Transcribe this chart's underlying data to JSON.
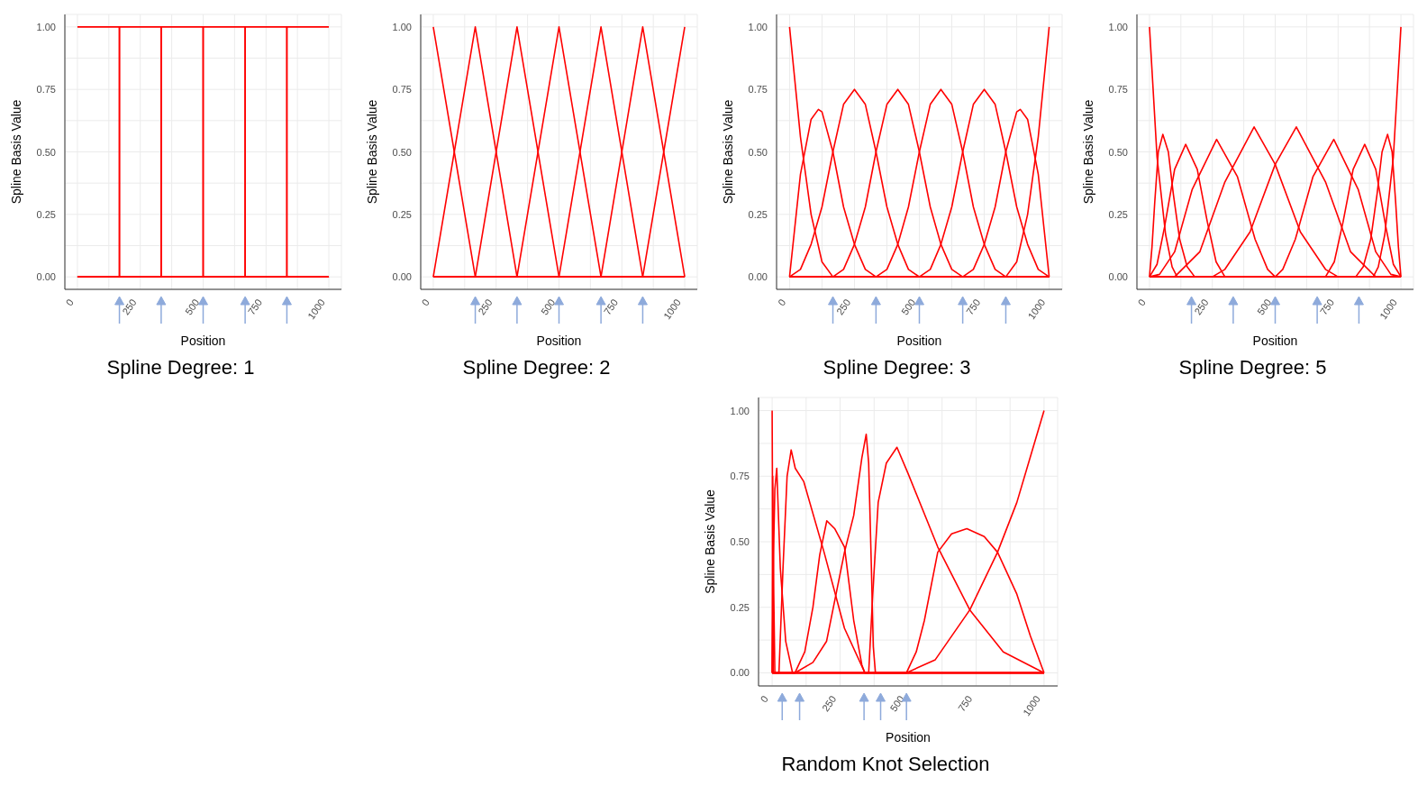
{
  "chart_data": [
    {
      "type": "line",
      "title": "Spline Degree: 1",
      "xlabel": "Position",
      "ylabel": "Spline Basis Value",
      "xlim": [
        -50,
        1050
      ],
      "ylim": [
        -0.05,
        1.05
      ],
      "xticks": [
        0,
        {
          "value": 125,
          "label": null
        },
        250,
        {
          "value": 375,
          "label": null
        },
        500,
        {
          "value": 625,
          "label": null
        },
        750,
        {
          "value": 875,
          "label": null
        },
        1000
      ],
      "yticks": [
        {
          "value": 0,
          "label": "0.00"
        },
        {
          "value": 0.125,
          "label": null
        },
        {
          "value": 0.25,
          "label": "0.25"
        },
        {
          "value": 0.375,
          "label": null
        },
        {
          "value": 0.5,
          "label": "0.50"
        },
        {
          "value": 0.625,
          "label": null
        },
        {
          "value": 0.75,
          "label": "0.75"
        },
        {
          "value": 0.875,
          "label": null
        },
        {
          "value": 1,
          "label": "1.00"
        }
      ],
      "grid": true,
      "marker": "none",
      "series": [
        {
          "color": "#ff0000",
          "x": [
            0,
            167,
            167,
            1000
          ],
          "values": [
            1,
            1,
            0,
            0
          ]
        },
        {
          "color": "#ff0000",
          "x": [
            0,
            167,
            167,
            333,
            333,
            1000
          ],
          "values": [
            0,
            0,
            1,
            1,
            0,
            0
          ]
        },
        {
          "color": "#ff0000",
          "x": [
            0,
            333,
            333,
            500,
            500,
            1000
          ],
          "values": [
            0,
            0,
            1,
            1,
            0,
            0
          ]
        },
        {
          "color": "#ff0000",
          "x": [
            0,
            500,
            500,
            667,
            667,
            1000
          ],
          "values": [
            0,
            0,
            1,
            1,
            0,
            0
          ]
        },
        {
          "color": "#ff0000",
          "x": [
            0,
            667,
            667,
            833,
            833,
            1000
          ],
          "values": [
            0,
            0,
            1,
            1,
            0,
            0
          ]
        },
        {
          "color": "#ff0000",
          "x": [
            0,
            833,
            833,
            1000
          ],
          "values": [
            0,
            0,
            1,
            1
          ]
        }
      ]
    },
    {
      "type": "line",
      "title": "Spline Degree: 2",
      "xlabel": "Position",
      "ylabel": "Spline Basis Value",
      "xlim": [
        -50,
        1050
      ],
      "ylim": [
        -0.05,
        1.05
      ],
      "xticks": [
        0,
        {
          "value": 125,
          "label": null
        },
        250,
        {
          "value": 375,
          "label": null
        },
        500,
        {
          "value": 625,
          "label": null
        },
        750,
        {
          "value": 875,
          "label": null
        },
        1000
      ],
      "yticks": [
        {
          "value": 0,
          "label": "0.00"
        },
        {
          "value": 0.125,
          "label": null
        },
        {
          "value": 0.25,
          "label": "0.25"
        },
        {
          "value": 0.375,
          "label": null
        },
        {
          "value": 0.5,
          "label": "0.50"
        },
        {
          "value": 0.625,
          "label": null
        },
        {
          "value": 0.75,
          "label": "0.75"
        },
        {
          "value": 0.875,
          "label": null
        },
        {
          "value": 1,
          "label": "1.00"
        }
      ],
      "grid": true,
      "marker": "none",
      "series": [
        {
          "color": "#ff0000",
          "x": [
            0,
            167,
            1000
          ],
          "values": [
            1,
            0,
            0
          ]
        },
        {
          "color": "#ff0000",
          "x": [
            0,
            167,
            333,
            1000
          ],
          "values": [
            0,
            1,
            0,
            0
          ]
        },
        {
          "color": "#ff0000",
          "x": [
            0,
            167,
            333,
            500,
            1000
          ],
          "values": [
            0,
            0,
            1,
            0,
            0
          ]
        },
        {
          "color": "#ff0000",
          "x": [
            0,
            333,
            500,
            667,
            1000
          ],
          "values": [
            0,
            0,
            1,
            0,
            0
          ]
        },
        {
          "color": "#ff0000",
          "x": [
            0,
            500,
            667,
            833,
            1000
          ],
          "values": [
            0,
            0,
            1,
            0,
            0
          ]
        },
        {
          "color": "#ff0000",
          "x": [
            0,
            667,
            833,
            1000
          ],
          "values": [
            0,
            0,
            1,
            0
          ]
        },
        {
          "color": "#ff0000",
          "x": [
            0,
            833,
            1000
          ],
          "values": [
            0,
            0,
            1
          ]
        }
      ]
    },
    {
      "type": "line",
      "title": "Spline Degree: 3",
      "xlabel": "Position",
      "ylabel": "Spline Basis Value",
      "xlim": [
        -50,
        1050
      ],
      "ylim": [
        -0.05,
        1.05
      ],
      "xticks": [
        0,
        {
          "value": 125,
          "label": null
        },
        250,
        {
          "value": 375,
          "label": null
        },
        500,
        {
          "value": 625,
          "label": null
        },
        750,
        {
          "value": 875,
          "label": null
        },
        1000
      ],
      "yticks": [
        {
          "value": 0,
          "label": "0.00"
        },
        {
          "value": 0.125,
          "label": null
        },
        {
          "value": 0.25,
          "label": "0.25"
        },
        {
          "value": 0.375,
          "label": null
        },
        {
          "value": 0.5,
          "label": "0.50"
        },
        {
          "value": 0.625,
          "label": null
        },
        {
          "value": 0.75,
          "label": "0.75"
        },
        {
          "value": 0.875,
          "label": null
        },
        {
          "value": 1,
          "label": "1.00"
        }
      ],
      "grid": true,
      "marker": "none",
      "series": [
        {
          "color": "#ff0000",
          "x": [
            0,
            42,
            83,
            125,
            167,
            1000
          ],
          "values": [
            1,
            0.56,
            0.25,
            0.06,
            0,
            0
          ]
        },
        {
          "color": "#ff0000",
          "x": [
            0,
            42,
            83,
            111,
            125,
            167,
            208,
            250,
            292,
            333,
            1000
          ],
          "values": [
            0,
            0.41,
            0.63,
            0.67,
            0.66,
            0.5,
            0.28,
            0.13,
            0.03,
            0,
            0
          ]
        },
        {
          "color": "#ff0000",
          "x": [
            0,
            42,
            83,
            125,
            167,
            208,
            250,
            292,
            333,
            375,
            417,
            458,
            500,
            1000
          ],
          "values": [
            0,
            0.03,
            0.13,
            0.28,
            0.5,
            0.69,
            0.75,
            0.69,
            0.5,
            0.28,
            0.13,
            0.03,
            0,
            0
          ]
        },
        {
          "color": "#ff0000",
          "x": [
            0,
            167,
            208,
            250,
            292,
            333,
            375,
            417,
            458,
            500,
            542,
            583,
            625,
            667,
            1000
          ],
          "values": [
            0,
            0,
            0.03,
            0.13,
            0.28,
            0.5,
            0.69,
            0.75,
            0.69,
            0.5,
            0.28,
            0.13,
            0.03,
            0,
            0
          ]
        },
        {
          "color": "#ff0000",
          "x": [
            0,
            333,
            375,
            417,
            458,
            500,
            542,
            583,
            625,
            667,
            708,
            750,
            792,
            833,
            1000
          ],
          "values": [
            0,
            0,
            0.03,
            0.13,
            0.28,
            0.5,
            0.69,
            0.75,
            0.69,
            0.5,
            0.28,
            0.13,
            0.03,
            0,
            0
          ]
        },
        {
          "color": "#ff0000",
          "x": [
            0,
            500,
            542,
            583,
            625,
            667,
            708,
            750,
            792,
            833,
            875,
            917,
            958,
            1000
          ],
          "values": [
            0,
            0,
            0.03,
            0.13,
            0.28,
            0.5,
            0.69,
            0.75,
            0.69,
            0.5,
            0.28,
            0.13,
            0.03,
            0
          ]
        },
        {
          "color": "#ff0000",
          "x": [
            0,
            667,
            708,
            750,
            792,
            833,
            875,
            889,
            917,
            958,
            1000
          ],
          "values": [
            0,
            0,
            0.03,
            0.13,
            0.28,
            0.5,
            0.66,
            0.67,
            0.63,
            0.41,
            0
          ]
        },
        {
          "color": "#ff0000",
          "x": [
            0,
            833,
            875,
            917,
            958,
            1000
          ],
          "values": [
            0,
            0,
            0.06,
            0.25,
            0.56,
            1
          ]
        }
      ]
    },
    {
      "type": "line",
      "title": "Spline Degree: 5",
      "xlabel": "Position",
      "ylabel": "Spline Basis Value",
      "xlim": [
        -50,
        1050
      ],
      "ylim": [
        -0.05,
        1.05
      ],
      "xticks": [
        0,
        {
          "value": 125,
          "label": null
        },
        250,
        {
          "value": 375,
          "label": null
        },
        500,
        {
          "value": 625,
          "label": null
        },
        750,
        {
          "value": 875,
          "label": null
        },
        1000
      ],
      "yticks": [
        {
          "value": 0,
          "label": "0.00"
        },
        {
          "value": 0.125,
          "label": null
        },
        {
          "value": 0.25,
          "label": "0.25"
        },
        {
          "value": 0.375,
          "label": null
        },
        {
          "value": 0.5,
          "label": "0.50"
        },
        {
          "value": 0.625,
          "label": null
        },
        {
          "value": 0.75,
          "label": "0.75"
        },
        {
          "value": 0.875,
          "label": null
        },
        {
          "value": 1,
          "label": "1.00"
        }
      ],
      "grid": true,
      "marker": "none",
      "series": [
        {
          "color": "#ff0000",
          "x": [
            0,
            30,
            64,
            90,
            110,
            1000
          ],
          "values": [
            1,
            0.48,
            0.17,
            0.04,
            0,
            0
          ]
        },
        {
          "color": "#ff0000",
          "x": [
            0,
            10,
            21,
            35,
            53,
            75,
            95,
            120,
            150,
            180,
            1000
          ],
          "values": [
            0,
            0.12,
            0.3,
            0.5,
            0.57,
            0.5,
            0.33,
            0.15,
            0.04,
            0,
            0
          ]
        },
        {
          "color": "#ff0000",
          "x": [
            0,
            30,
            60,
            100,
            144,
            190,
            230,
            265,
            300,
            1000
          ],
          "values": [
            0,
            0.05,
            0.2,
            0.43,
            0.53,
            0.43,
            0.22,
            0.06,
            0,
            0
          ]
        },
        {
          "color": "#ff0000",
          "x": [
            0,
            40,
            100,
            170,
            267,
            350,
            420,
            470,
            500,
            1000
          ],
          "values": [
            0,
            0.01,
            0.1,
            0.35,
            0.55,
            0.4,
            0.15,
            0.03,
            0,
            0
          ]
        },
        {
          "color": "#ff0000",
          "x": [
            0,
            100,
            200,
            300,
            416,
            500,
            600,
            700,
            750,
            1000
          ],
          "values": [
            0,
            0,
            0.1,
            0.38,
            0.6,
            0.45,
            0.18,
            0.03,
            0,
            0
          ]
        },
        {
          "color": "#ff0000",
          "x": [
            0,
            250,
            300,
            400,
            500,
            584,
            700,
            800,
            900,
            1000
          ],
          "values": [
            0,
            0,
            0.03,
            0.18,
            0.45,
            0.6,
            0.38,
            0.1,
            0,
            0
          ]
        },
        {
          "color": "#ff0000",
          "x": [
            0,
            500,
            530,
            580,
            650,
            733,
            830,
            900,
            960,
            1000
          ],
          "values": [
            0,
            0,
            0.03,
            0.15,
            0.4,
            0.55,
            0.35,
            0.1,
            0.01,
            0
          ]
        },
        {
          "color": "#ff0000",
          "x": [
            0,
            700,
            735,
            770,
            810,
            856,
            900,
            940,
            970,
            1000
          ],
          "values": [
            0,
            0,
            0.06,
            0.22,
            0.43,
            0.53,
            0.43,
            0.2,
            0.05,
            0
          ]
        },
        {
          "color": "#ff0000",
          "x": [
            0,
            820,
            850,
            880,
            905,
            925,
            947,
            965,
            979,
            990,
            1000
          ],
          "values": [
            0,
            0,
            0.04,
            0.15,
            0.33,
            0.5,
            0.57,
            0.5,
            0.3,
            0.12,
            0
          ]
        },
        {
          "color": "#ff0000",
          "x": [
            0,
            890,
            910,
            936,
            970,
            1000
          ],
          "values": [
            0,
            0,
            0.04,
            0.17,
            0.48,
            1
          ]
        }
      ]
    },
    {
      "type": "line",
      "title": "Random Knot Selection",
      "xlabel": "Position",
      "ylabel": "Spline Basis Value",
      "xlim": [
        -50,
        1050
      ],
      "ylim": [
        -0.05,
        1.05
      ],
      "xticks": [
        0,
        {
          "value": 125,
          "label": null
        },
        250,
        {
          "value": 375,
          "label": null
        },
        500,
        {
          "value": 625,
          "label": null
        },
        750,
        {
          "value": 875,
          "label": null
        },
        1000
      ],
      "yticks": [
        {
          "value": 0,
          "label": "0.00"
        },
        {
          "value": 0.125,
          "label": null
        },
        {
          "value": 0.25,
          "label": "0.25"
        },
        {
          "value": 0.375,
          "label": null
        },
        {
          "value": 0.5,
          "label": "0.50"
        },
        {
          "value": 0.625,
          "label": null
        },
        {
          "value": 0.75,
          "label": "0.75"
        },
        {
          "value": 0.875,
          "label": null
        },
        {
          "value": 1,
          "label": "1.00"
        }
      ],
      "grid": true,
      "marker": "none",
      "series": [
        {
          "color": "#ff0000",
          "x": [
            0,
            4,
            1000
          ],
          "values": [
            1,
            0,
            0
          ]
        },
        {
          "color": "#ff0000",
          "x": [
            0,
            2,
            6,
            10,
            1000
          ],
          "values": [
            0,
            0.75,
            0.3,
            0,
            0
          ]
        },
        {
          "color": "#ff0000",
          "x": [
            0,
            5,
            10,
            17,
            30,
            50,
            75,
            1000
          ],
          "values": [
            0,
            0.45,
            0.7,
            0.78,
            0.4,
            0.12,
            0,
            0
          ]
        },
        {
          "color": "#ff0000",
          "x": [
            0,
            25,
            40,
            55,
            70,
            85,
            116,
            191,
            266,
            341,
            1000
          ],
          "values": [
            0,
            0,
            0.4,
            0.75,
            0.85,
            0.78,
            0.73,
            0.46,
            0.17,
            0,
            0
          ]
        },
        {
          "color": "#ff0000",
          "x": [
            0,
            84,
            120,
            150,
            175,
            201,
            230,
            266,
            300,
            330,
            341,
            1000
          ],
          "values": [
            0,
            0,
            0.08,
            0.25,
            0.45,
            0.58,
            0.55,
            0.48,
            0.2,
            0.03,
            0,
            0
          ]
        },
        {
          "color": "#ff0000",
          "x": [
            0,
            84,
            150,
            200,
            266,
            300,
            330,
            346,
            355,
            365,
            372,
            380,
            1000
          ],
          "values": [
            0,
            0,
            0.04,
            0.12,
            0.46,
            0.6,
            0.82,
            0.91,
            0.8,
            0.4,
            0.1,
            0,
            0
          ]
        },
        {
          "color": "#ff0000",
          "x": [
            0,
            355,
            370,
            390,
            420,
            459,
            500,
            609,
            727,
            850,
            1000
          ],
          "values": [
            0,
            0,
            0.3,
            0.65,
            0.8,
            0.86,
            0.76,
            0.48,
            0.24,
            0.08,
            0
          ]
        },
        {
          "color": "#ff0000",
          "x": [
            0,
            494,
            530,
            560,
            609,
            660,
            716,
            780,
            829,
            900,
            950,
            1000
          ],
          "values": [
            0,
            0,
            0.08,
            0.2,
            0.46,
            0.53,
            0.55,
            0.52,
            0.46,
            0.3,
            0.14,
            0
          ]
        },
        {
          "color": "#ff0000",
          "x": [
            0,
            494,
            600,
            727,
            829,
            900,
            1000
          ],
          "values": [
            0,
            0,
            0.05,
            0.24,
            0.46,
            0.65,
            1
          ]
        }
      ]
    }
  ]
}
